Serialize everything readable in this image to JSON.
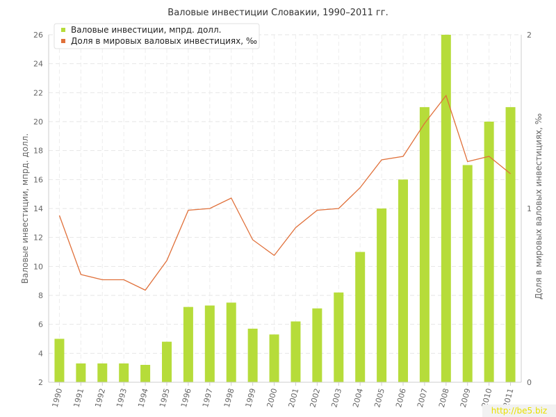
{
  "chart_data": {
    "type": "bar+line",
    "title": "Валовые инвестиции Словакии, 1990–2011 гг.",
    "categories": [
      "1990",
      "1991",
      "1992",
      "1993",
      "1994",
      "1995",
      "1996",
      "1997",
      "1998",
      "1999",
      "2000",
      "2001",
      "2002",
      "2003",
      "2004",
      "2005",
      "2006",
      "2007",
      "2008",
      "2009",
      "2010",
      "2011"
    ],
    "series": [
      {
        "name": "Валовые инвестиции, мпрд. долл.",
        "type": "bar",
        "axis": "left",
        "color": "#b6dc3a",
        "values": [
          5,
          3.3,
          3.3,
          3.3,
          3.2,
          4.8,
          7.2,
          7.3,
          7.5,
          5.7,
          5.3,
          6.2,
          7.1,
          8.2,
          11,
          14,
          16,
          21,
          26,
          17,
          20,
          21
        ]
      },
      {
        "name": "Доля в мировых валовых инвестициях, ‰",
        "type": "line",
        "axis": "right",
        "color": "#e0703a",
        "values": [
          0.96,
          0.62,
          0.59,
          0.59,
          0.53,
          0.7,
          0.99,
          1.0,
          1.06,
          0.82,
          0.73,
          0.89,
          0.99,
          1.0,
          1.12,
          1.28,
          1.3,
          1.49,
          1.65,
          1.27,
          1.3,
          1.2
        ]
      }
    ],
    "ylabel": "Валовые инвестиции, мпрд. долл.",
    "y2label": "Доля в мировых валовых инвестициях, ‰",
    "ylim": [
      2,
      26
    ],
    "yticks": [
      2,
      4,
      6,
      8,
      10,
      12,
      14,
      16,
      18,
      20,
      22,
      24,
      26
    ],
    "y2lim": [
      0,
      2
    ],
    "y2ticks": [
      0,
      1,
      2
    ],
    "grid": true,
    "legend": "top-left"
  },
  "watermark": "http://be5.biz"
}
